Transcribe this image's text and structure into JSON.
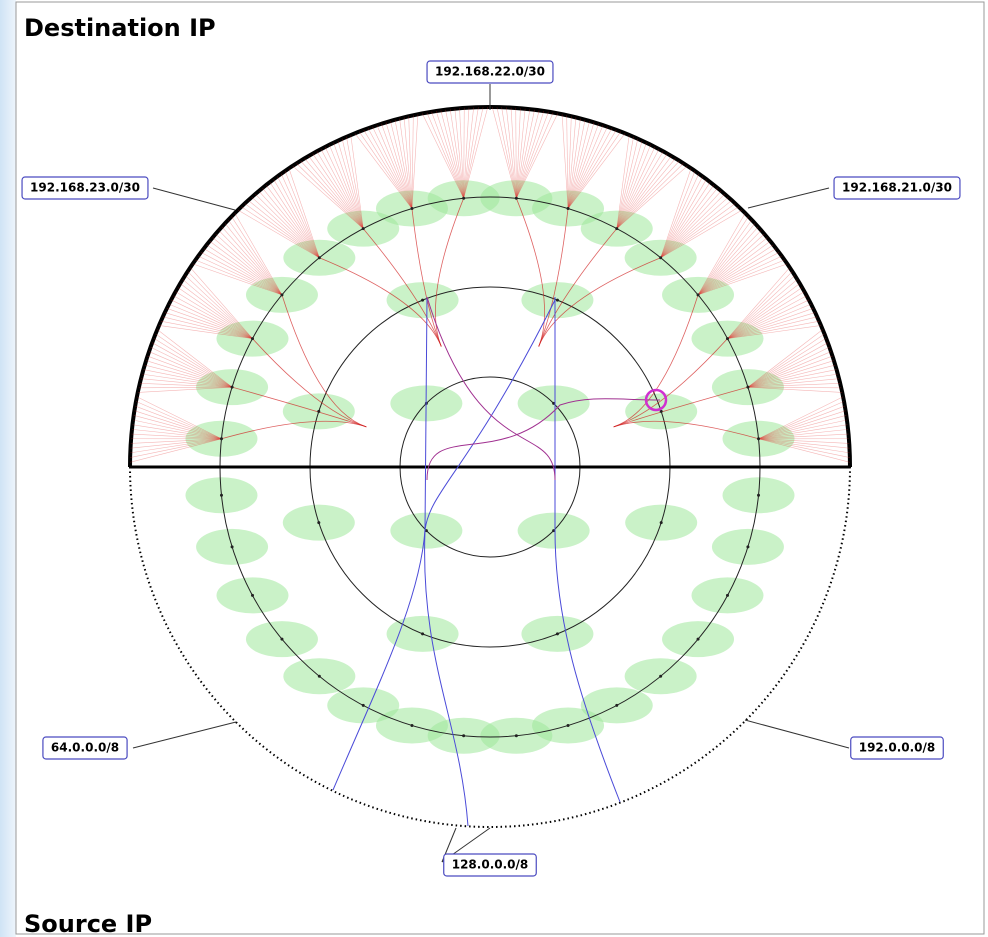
{
  "header": {
    "title": "Destination IP"
  },
  "footer": {
    "title": "Source IP"
  },
  "labels": [
    "192.168.22.0/30",
    "192.168.23.0/30",
    "192.168.21.0/30",
    "64.0.0.0/8",
    "192.0.0.0/8",
    "128.0.0.0/8"
  ]
}
